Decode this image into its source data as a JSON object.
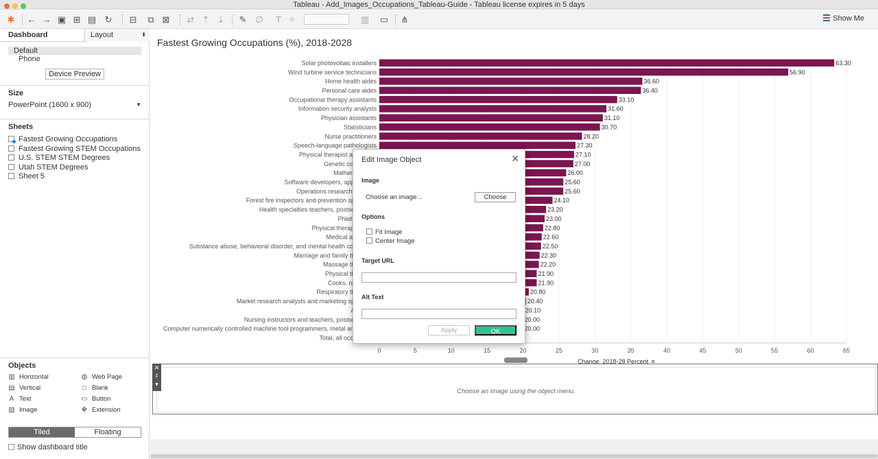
{
  "window": {
    "title": "Tableau - Add_Images_Occupations_Tableau-Guide - Tableau license expires in 5 days"
  },
  "toolbar": {
    "show_me_label": "Show Me"
  },
  "left_pane": {
    "tab_dashboard": "Dashboard",
    "tab_layout": "Layout",
    "devices": [
      "Default",
      "Phone"
    ],
    "device_preview_label": "Device Preview",
    "size_title": "Size",
    "size_value": "PowerPoint (1600 x 900)",
    "sheets_title": "Sheets",
    "sheets": [
      "Fastest Growing Occupations",
      "Fastest Growing STEM Occupations",
      "U.S. STEM STEM Degrees",
      "Utah STEM Degrees",
      "Sheet 5"
    ],
    "objects_title": "Objects",
    "objects": {
      "horizontal": "Horizontal",
      "web_page": "Web Page",
      "vertical": "Vertical",
      "blank": "Blank",
      "text": "Text",
      "button": "Button",
      "image": "Image",
      "extension": "Extension"
    },
    "tiled_label": "Tiled",
    "floating_label": "Floating",
    "show_title_label": "Show dashboard title"
  },
  "image_object": {
    "message": "Choose an image using the object menu."
  },
  "modal": {
    "title": "Edit Image Object",
    "image_label": "Image",
    "choose_text": "Choose an image...",
    "choose_button": "Choose",
    "options_label": "Options",
    "fit_image": "Fit Image",
    "center_image": "Center Image",
    "target_url_label": "Target URL",
    "target_url_value": "",
    "alt_text_label": "Alt Text",
    "alt_text_value": "",
    "apply_label": "Apply",
    "ok_label": "OK"
  },
  "chart_data": {
    "type": "bar",
    "orientation": "horizontal",
    "title": "Fastest Growing Occupations (%), 2018-2028",
    "xlabel": "Change, 2018-28 Percent",
    "xlim": [
      0,
      65
    ],
    "xticks": [
      0,
      5,
      10,
      15,
      20,
      25,
      30,
      35,
      40,
      45,
      50,
      55,
      60,
      65
    ],
    "bar_color": "#7b1650",
    "categories": [
      "Solar photovoltaic installers",
      "Wind turbine service technicians",
      "Home health aides",
      "Personal care aides",
      "Occupational therapy assistants",
      "Information security analysts",
      "Physician assistants",
      "Statisticians",
      "Nurse practitioners",
      "Speech-language pathologists",
      "Physical therapist assistants",
      "Genetic counselors",
      "Mathematicians",
      "Software developers, applications",
      "Operations research analysts",
      "Forest fire inspectors and prevention specialists",
      "Health specialties teachers, postsecondary",
      "Phlebotomists",
      "Physical therapist aides",
      "Medical assistants",
      "Substance abuse, behavioral disorder, and mental health counselors",
      "Marriage and family therapists",
      "Massage therapists",
      "Physical therapists",
      "Cooks, restaurant",
      "Respiratory therapists",
      "Market research analysts and marketing specialists",
      "Actuaries",
      "Nursing instructors and teachers, postsecondary",
      "Computer numerically controlled machine tool programmers, metal and plastic",
      "Total, all occupations"
    ],
    "values": [
      63.3,
      56.9,
      36.6,
      36.4,
      33.1,
      31.6,
      31.1,
      30.7,
      28.2,
      27.3,
      27.1,
      27.0,
      26.0,
      25.6,
      25.6,
      24.1,
      23.2,
      23.0,
      22.8,
      22.6,
      22.5,
      22.3,
      22.2,
      21.9,
      21.9,
      20.8,
      20.4,
      20.1,
      20.0,
      20.0,
      null
    ],
    "value_labels": [
      "63.30",
      "56.90",
      "36.60",
      "36.40",
      "33.10",
      "31.60",
      "31.10",
      "30.70",
      "28.20",
      "27.30",
      "27.10",
      "27.00",
      "26.00",
      "25.60",
      "25.60",
      "24.10",
      "23.20",
      "23.00",
      "22.80",
      "22.60",
      "22.50",
      "22.30",
      "22.20",
      "21.90",
      "21.90",
      "20.80",
      "20.40",
      "20.10",
      "20.00",
      "20.00",
      ""
    ]
  }
}
